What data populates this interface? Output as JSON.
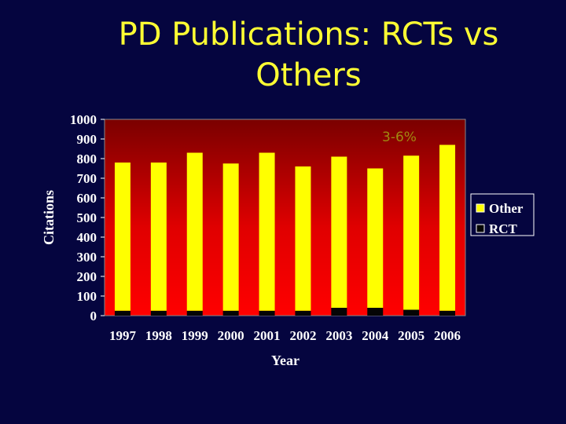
{
  "slide": {
    "title_line1": "PD Publications: RCTs vs",
    "title_line2": "Others"
  },
  "chart_data": {
    "type": "bar",
    "stacked": true,
    "categories": [
      "1997",
      "1998",
      "1999",
      "2000",
      "2001",
      "2002",
      "2003",
      "2004",
      "2005",
      "2006"
    ],
    "series": [
      {
        "name": "RCT",
        "values": [
          25,
          25,
          25,
          25,
          25,
          25,
          40,
          40,
          30,
          25
        ],
        "color": "#050505"
      },
      {
        "name": "Other",
        "values": [
          755,
          755,
          805,
          750,
          805,
          735,
          770,
          710,
          785,
          845
        ],
        "color": "#ffff00"
      }
    ],
    "xlabel": "Year",
    "ylabel": "Citations",
    "ylim": [
      0,
      1000
    ],
    "yticks": [
      0,
      100,
      200,
      300,
      400,
      500,
      600,
      700,
      800,
      900,
      1000
    ],
    "legend": {
      "placement": "right",
      "entries": [
        "Other",
        "RCT"
      ]
    },
    "annotation": "3-6%",
    "plot_background": {
      "top": "#7a0000",
      "bottom": "#ff0000"
    }
  }
}
